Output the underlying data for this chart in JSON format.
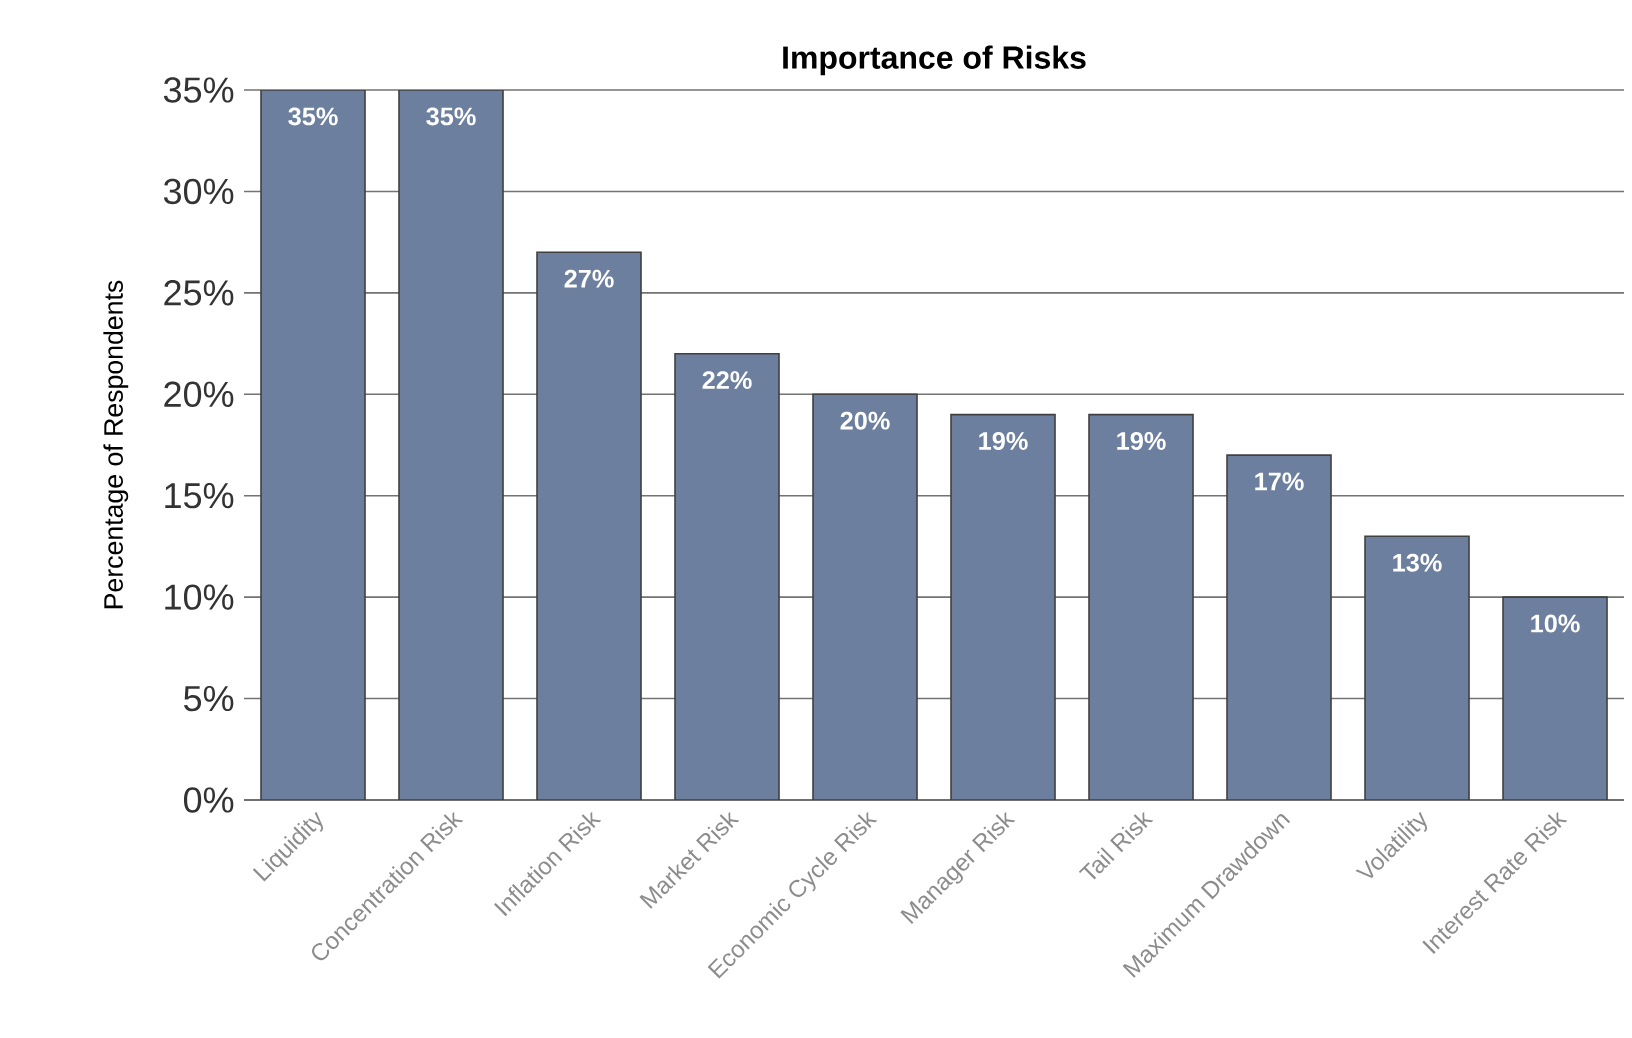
{
  "chart_data": {
    "type": "bar",
    "title": "Importance of Risks",
    "ylabel": "Percentage of Respondents",
    "categories": [
      "Liquidity",
      "Concentration Risk",
      "Inflation Risk",
      "Market Risk",
      "Economic Cycle Risk",
      "Manager Risk",
      "Tail Risk",
      "Maximum Drawdown",
      "Volatility",
      "Interest Rate Risk"
    ],
    "values": [
      35,
      35,
      27,
      22,
      20,
      19,
      19,
      17,
      13,
      10
    ],
    "value_labels": [
      "35%",
      "35%",
      "27%",
      "22%",
      "20%",
      "19%",
      "19%",
      "17%",
      "13%",
      "10%"
    ],
    "color": "#6c7f9e",
    "ylim": [
      0,
      35
    ],
    "yticks": [
      {
        "value": 0,
        "label": "0%"
      },
      {
        "value": 5,
        "label": "5%"
      },
      {
        "value": 10,
        "label": "10%"
      },
      {
        "value": 15,
        "label": "15%"
      },
      {
        "value": 20,
        "label": "20%"
      },
      {
        "value": 25,
        "label": "25%"
      },
      {
        "value": 30,
        "label": "30%"
      },
      {
        "value": 35,
        "label": "35%"
      }
    ],
    "grid": "y"
  }
}
